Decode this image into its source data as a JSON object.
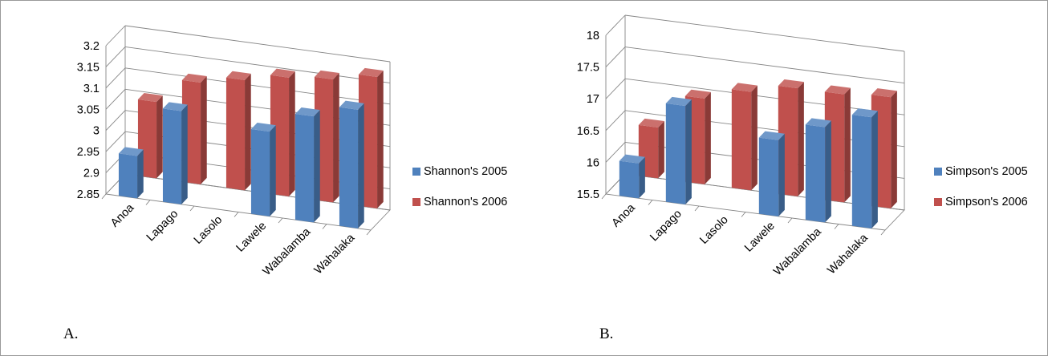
{
  "colors": {
    "series2005": "#4f81bd",
    "series2006": "#c0504d",
    "axis": "#868686",
    "grid": "#868686"
  },
  "labels": {
    "panelA": "A.",
    "panelB": "B."
  },
  "chart_data": [
    {
      "type": "bar",
      "categories": [
        "Anoa",
        "Lapago",
        "Lasolo",
        "Lawele",
        "Wabalamba",
        "Wahalaka"
      ],
      "series": [
        {
          "name": "Shannon's 2005",
          "values": [
            2.95,
            3.07,
            null,
            3.05,
            3.1,
            3.13
          ]
        },
        {
          "name": "Shannon's 2006",
          "values": [
            3.03,
            3.09,
            3.11,
            3.13,
            3.14,
            3.16
          ]
        }
      ],
      "yticks": [
        "2.85",
        "2.9",
        "2.95",
        "3",
        "3.05",
        "3.1",
        "3.15",
        "3.2"
      ],
      "ylim": [
        2.85,
        3.2
      ],
      "title": "",
      "xlabel": "",
      "ylabel": "",
      "grid": true,
      "legend": "right",
      "style": "3d-clustered-column"
    },
    {
      "type": "bar",
      "categories": [
        "Anoa",
        "Lapago",
        "Lasolo",
        "Lawele",
        "Wabalamba",
        "Wahalaka"
      ],
      "series": [
        {
          "name": "Simpson's 2005",
          "values": [
            16.05,
            17.05,
            null,
            16.7,
            17.0,
            17.25
          ]
        },
        {
          "name": "Simpson's 2006",
          "values": [
            16.3,
            16.85,
            17.05,
            17.2,
            17.2,
            17.25
          ]
        }
      ],
      "yticks": [
        "15.5",
        "16",
        "16.5",
        "17",
        "17.5",
        "18"
      ],
      "ylim": [
        15.5,
        18
      ],
      "title": "",
      "xlabel": "",
      "ylabel": "",
      "grid": true,
      "legend": "right",
      "style": "3d-clustered-column"
    }
  ]
}
